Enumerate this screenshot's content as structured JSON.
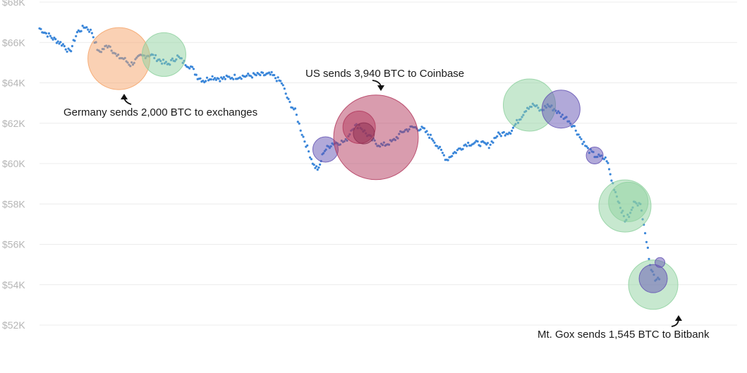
{
  "chart_data": {
    "type": "scatter",
    "title": "",
    "xlabel": "",
    "ylabel": "",
    "ylim": [
      52000,
      68000
    ],
    "y_ticks": [
      52000,
      54000,
      56000,
      58000,
      60000,
      62000,
      64000,
      66000,
      68000
    ],
    "y_tick_labels": [
      "$52K",
      "$54K",
      "$56K",
      "$58K",
      "$60K",
      "$62K",
      "$64K",
      "$66K",
      "$68K"
    ],
    "xlim": [
      0,
      100
    ],
    "grid": "horizontal",
    "price_series_color": "#3a86d9",
    "price_anchors": [
      [
        0.0,
        66700
      ],
      [
        2.0,
        66200
      ],
      [
        3.5,
        65900
      ],
      [
        4.5,
        65500
      ],
      [
        5.6,
        66500
      ],
      [
        6.8,
        66800
      ],
      [
        7.8,
        66500
      ],
      [
        8.8,
        65500
      ],
      [
        10.3,
        65900
      ],
      [
        11.5,
        65300
      ],
      [
        12.5,
        65200
      ],
      [
        13.5,
        64900
      ],
      [
        15.0,
        65300
      ],
      [
        16.5,
        65400
      ],
      [
        18.0,
        65100
      ],
      [
        19.0,
        64900
      ],
      [
        20.5,
        65300
      ],
      [
        21.5,
        65000
      ],
      [
        22.5,
        64800
      ],
      [
        23.5,
        64300
      ],
      [
        24.5,
        64100
      ],
      [
        25.5,
        64300
      ],
      [
        27.0,
        64200
      ],
      [
        29.0,
        64300
      ],
      [
        31.0,
        64350
      ],
      [
        33.0,
        64400
      ],
      [
        34.5,
        64400
      ],
      [
        36.0,
        64000
      ],
      [
        37.0,
        63100
      ],
      [
        38.0,
        62600
      ],
      [
        39.0,
        61500
      ],
      [
        40.0,
        60600
      ],
      [
        40.8,
        59900
      ],
      [
        41.5,
        59700
      ],
      [
        42.2,
        60600
      ],
      [
        43.5,
        61000
      ],
      [
        45.5,
        61100
      ],
      [
        46.5,
        61800
      ],
      [
        47.5,
        61900
      ],
      [
        48.5,
        61500
      ],
      [
        50.0,
        61000
      ],
      [
        51.0,
        60900
      ],
      [
        52.5,
        61100
      ],
      [
        54.0,
        61600
      ],
      [
        55.5,
        61800
      ],
      [
        57.0,
        61700
      ],
      [
        58.5,
        61200
      ],
      [
        59.5,
        60700
      ],
      [
        60.5,
        60200
      ],
      [
        61.5,
        60500
      ],
      [
        63.5,
        61000
      ],
      [
        65.5,
        61000
      ],
      [
        66.8,
        60900
      ],
      [
        68.0,
        61400
      ],
      [
        70.0,
        61600
      ],
      [
        71.5,
        62300
      ],
      [
        72.5,
        62800
      ],
      [
        73.5,
        62900
      ],
      [
        74.5,
        62600
      ],
      [
        75.5,
        62900
      ],
      [
        76.5,
        62700
      ],
      [
        77.5,
        62400
      ],
      [
        78.5,
        62200
      ],
      [
        79.5,
        61800
      ],
      [
        80.5,
        61200
      ],
      [
        81.5,
        60700
      ],
      [
        82.5,
        60400
      ],
      [
        83.5,
        60300
      ],
      [
        84.3,
        60200
      ],
      [
        85.0,
        59200
      ],
      [
        85.8,
        58400
      ],
      [
        86.5,
        57700
      ],
      [
        87.0,
        57200
      ],
      [
        87.8,
        57500
      ],
      [
        88.5,
        58200
      ],
      [
        89.3,
        57900
      ],
      [
        89.8,
        57100
      ],
      [
        90.4,
        55700
      ],
      [
        90.9,
        54800
      ],
      [
        91.5,
        54300
      ],
      [
        92.3,
        54400
      ]
    ],
    "bubbles": [
      {
        "x": 11.8,
        "y": 65200,
        "size": 44,
        "color": "#f5a46a"
      },
      {
        "x": 18.5,
        "y": 65400,
        "size": 31,
        "color": "#8fd1a0"
      },
      {
        "x": 42.5,
        "y": 60700,
        "size": 18,
        "color": "#6454b4"
      },
      {
        "x": 50.0,
        "y": 61300,
        "size": 60,
        "color": "#b33a5e"
      },
      {
        "x": 47.5,
        "y": 61800,
        "size": 23,
        "color": "#b33a5e"
      },
      {
        "x": 48.2,
        "y": 61500,
        "size": 15,
        "color": "#8c2f52"
      },
      {
        "x": 72.8,
        "y": 62900,
        "size": 37,
        "color": "#8fd1a0"
      },
      {
        "x": 77.5,
        "y": 62700,
        "size": 27,
        "color": "#6454b4"
      },
      {
        "x": 82.5,
        "y": 60400,
        "size": 12,
        "color": "#6454b4"
      },
      {
        "x": 87.0,
        "y": 57900,
        "size": 37,
        "color": "#8fd1a0"
      },
      {
        "x": 87.5,
        "y": 58100,
        "size": 28,
        "color": "#8fd1a0"
      },
      {
        "x": 91.2,
        "y": 54000,
        "size": 35,
        "color": "#8fd1a0"
      },
      {
        "x": 91.2,
        "y": 54300,
        "size": 20,
        "color": "#6454b4"
      },
      {
        "x": 92.2,
        "y": 55100,
        "size": 7,
        "color": "#6454b4"
      }
    ],
    "annotations": [
      {
        "text": "Germany sends 2,000 BTC to exchanges"
      },
      {
        "text": "US sends 3,940 BTC to Coinbase"
      },
      {
        "text": "Mt. Gox sends 1,545 BTC to Bitbank"
      }
    ]
  }
}
